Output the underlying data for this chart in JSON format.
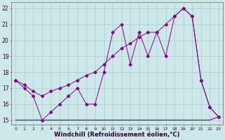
{
  "xlabel": "Windchill (Refroidissement éolien,°C)",
  "bg_color": "#cce8e8",
  "line_color": "#880088",
  "grid_color": "#aacccc",
  "x": [
    0,
    1,
    2,
    3,
    4,
    5,
    6,
    7,
    8,
    9,
    10,
    11,
    12,
    13,
    14,
    15,
    16,
    17,
    18,
    19,
    20,
    21,
    22,
    23
  ],
  "line1_jagged": [
    17.5,
    17.0,
    16.5,
    15.0,
    15.5,
    16.0,
    16.5,
    17.0,
    16.0,
    16.0,
    18.0,
    20.5,
    21.0,
    18.5,
    20.5,
    19.0,
    20.5,
    19.0,
    21.5,
    22.0,
    21.5,
    17.5,
    15.8,
    15.2
  ],
  "line2_trend": [
    17.5,
    17.2,
    16.8,
    16.5,
    16.8,
    17.0,
    17.2,
    17.5,
    17.8,
    18.0,
    18.5,
    19.0,
    19.5,
    19.8,
    20.2,
    20.5,
    20.5,
    21.0,
    21.5,
    22.0,
    21.5,
    17.5,
    15.8,
    15.2
  ],
  "line3_flat": [
    15.0,
    15.0,
    15.0,
    15.0,
    15.0,
    15.0,
    15.0,
    15.0,
    15.0,
    15.0,
    15.0,
    15.0,
    15.0,
    15.0,
    15.0,
    15.0,
    15.0,
    15.0,
    15.0,
    15.0,
    15.0,
    15.0,
    15.0,
    15.2
  ],
  "ylim": [
    14.7,
    22.4
  ],
  "xlim": [
    -0.5,
    23.5
  ],
  "yticks": [
    15,
    16,
    17,
    18,
    19,
    20,
    21,
    22
  ],
  "xticks": [
    0,
    1,
    2,
    3,
    4,
    5,
    6,
    7,
    8,
    9,
    10,
    11,
    12,
    13,
    14,
    15,
    16,
    17,
    18,
    19,
    20,
    21,
    22,
    23
  ],
  "xlabel_fontsize": 6,
  "tick_fontsize": 5.5
}
